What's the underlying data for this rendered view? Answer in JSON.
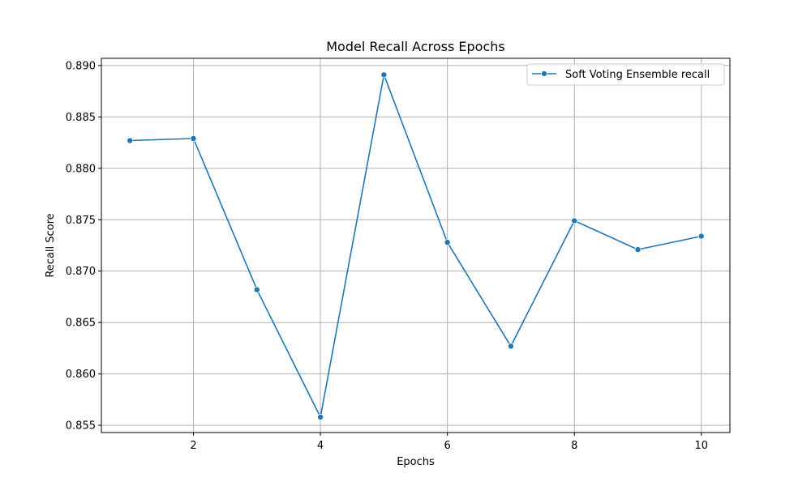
{
  "chart_data": {
    "type": "line",
    "title": "Model Recall Across Epochs",
    "xlabel": "Epochs",
    "ylabel": "Recall Score",
    "x": [
      1,
      2,
      3,
      4,
      5,
      6,
      7,
      8,
      9,
      10
    ],
    "series": [
      {
        "name": "Soft Voting Ensemble recall",
        "values": [
          0.8827,
          0.8829,
          0.8682,
          0.8558,
          0.8891,
          0.8728,
          0.8627,
          0.8749,
          0.8721,
          0.8734
        ],
        "color": "#1f77b4",
        "marker": "circle"
      }
    ],
    "xlim": [
      0.55,
      10.45
    ],
    "ylim": [
      0.8543,
      0.8907
    ],
    "xticks": [
      2,
      4,
      6,
      8,
      10
    ],
    "xtick_labels": [
      "2",
      "4",
      "6",
      "8",
      "10"
    ],
    "yticks": [
      0.855,
      0.86,
      0.865,
      0.87,
      0.875,
      0.88,
      0.885,
      0.89
    ],
    "ytick_labels": [
      "0.855",
      "0.860",
      "0.865",
      "0.870",
      "0.875",
      "0.880",
      "0.885",
      "0.890"
    ],
    "grid": true,
    "legend_position": "top-right"
  }
}
